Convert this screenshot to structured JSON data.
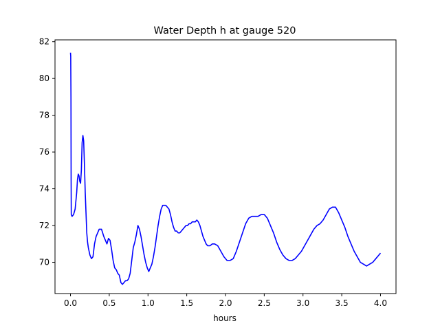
{
  "chart_data": {
    "type": "line",
    "title": "Water Depth h at gauge 520",
    "xlabel": "hours",
    "ylabel": "",
    "xlim": [
      -0.2,
      4.2
    ],
    "ylim": [
      68.3,
      82.1
    ],
    "xticks": [
      {
        "value": 0.0,
        "label": "0.0"
      },
      {
        "value": 0.5,
        "label": "0.5"
      },
      {
        "value": 1.0,
        "label": "1.0"
      },
      {
        "value": 1.5,
        "label": "1.5"
      },
      {
        "value": 2.0,
        "label": "2.0"
      },
      {
        "value": 2.5,
        "label": "2.5"
      },
      {
        "value": 3.0,
        "label": "3.0"
      },
      {
        "value": 3.5,
        "label": "3.5"
      },
      {
        "value": 4.0,
        "label": "4.0"
      }
    ],
    "yticks": [
      {
        "value": 70,
        "label": "70"
      },
      {
        "value": 72,
        "label": "72"
      },
      {
        "value": 74,
        "label": "74"
      },
      {
        "value": 76,
        "label": "76"
      },
      {
        "value": 78,
        "label": "78"
      },
      {
        "value": 80,
        "label": "80"
      },
      {
        "value": 82,
        "label": "82"
      }
    ],
    "grid": false,
    "series": [
      {
        "color": "#0000ff",
        "x": [
          0.0,
          0.003,
          0.006,
          0.008,
          0.01,
          0.02,
          0.04,
          0.06,
          0.08,
          0.09,
          0.1,
          0.11,
          0.12,
          0.13,
          0.14,
          0.15,
          0.16,
          0.17,
          0.18,
          0.19,
          0.2,
          0.21,
          0.22,
          0.23,
          0.25,
          0.27,
          0.29,
          0.31,
          0.33,
          0.35,
          0.37,
          0.4,
          0.43,
          0.45,
          0.47,
          0.49,
          0.51,
          0.53,
          0.55,
          0.57,
          0.59,
          0.61,
          0.63,
          0.65,
          0.67,
          0.69,
          0.71,
          0.73,
          0.75,
          0.77,
          0.79,
          0.81,
          0.83,
          0.85,
          0.87,
          0.89,
          0.91,
          0.93,
          0.95,
          0.97,
          0.99,
          1.01,
          1.03,
          1.05,
          1.07,
          1.09,
          1.11,
          1.13,
          1.15,
          1.17,
          1.19,
          1.21,
          1.23,
          1.25,
          1.27,
          1.29,
          1.31,
          1.33,
          1.35,
          1.37,
          1.39,
          1.41,
          1.43,
          1.45,
          1.47,
          1.49,
          1.51,
          1.53,
          1.55,
          1.57,
          1.59,
          1.61,
          1.63,
          1.65,
          1.67,
          1.69,
          1.71,
          1.73,
          1.75,
          1.77,
          1.8,
          1.83,
          1.86,
          1.9,
          1.94,
          1.98,
          2.02,
          2.06,
          2.1,
          2.14,
          2.18,
          2.22,
          2.26,
          2.3,
          2.34,
          2.38,
          2.42,
          2.46,
          2.5,
          2.54,
          2.58,
          2.62,
          2.66,
          2.7,
          2.74,
          2.78,
          2.82,
          2.86,
          2.9,
          2.94,
          2.98,
          3.02,
          3.06,
          3.1,
          3.14,
          3.18,
          3.22,
          3.26,
          3.3,
          3.34,
          3.38,
          3.42,
          3.46,
          3.5,
          3.54,
          3.58,
          3.62,
          3.66,
          3.7,
          3.74,
          3.78,
          3.82,
          3.86,
          3.9,
          3.94,
          3.98,
          4.0
        ],
        "y": [
          81.4,
          81.2,
          79.0,
          74.5,
          72.6,
          72.5,
          72.6,
          72.9,
          73.8,
          74.5,
          74.8,
          74.7,
          74.4,
          74.3,
          75.0,
          76.5,
          76.9,
          76.6,
          75.3,
          73.8,
          72.7,
          71.6,
          71.1,
          70.8,
          70.4,
          70.2,
          70.3,
          71.0,
          71.4,
          71.6,
          71.8,
          71.8,
          71.4,
          71.2,
          71.0,
          71.3,
          71.2,
          70.7,
          70.1,
          69.7,
          69.6,
          69.4,
          69.3,
          68.9,
          68.8,
          68.9,
          69.0,
          69.0,
          69.1,
          69.4,
          70.1,
          70.8,
          71.1,
          71.5,
          72.0,
          71.8,
          71.4,
          70.9,
          70.4,
          70.0,
          69.7,
          69.5,
          69.7,
          69.9,
          70.3,
          70.8,
          71.4,
          72.0,
          72.5,
          72.9,
          73.1,
          73.1,
          73.1,
          73.0,
          72.9,
          72.6,
          72.2,
          71.9,
          71.7,
          71.7,
          71.6,
          71.6,
          71.7,
          71.8,
          71.9,
          72.0,
          72.0,
          72.1,
          72.1,
          72.2,
          72.2,
          72.2,
          72.3,
          72.2,
          72.0,
          71.7,
          71.4,
          71.2,
          71.0,
          70.9,
          70.9,
          71.0,
          71.0,
          70.9,
          70.6,
          70.3,
          70.1,
          70.1,
          70.2,
          70.6,
          71.1,
          71.6,
          72.1,
          72.4,
          72.5,
          72.5,
          72.5,
          72.6,
          72.6,
          72.4,
          72.0,
          71.6,
          71.1,
          70.7,
          70.4,
          70.2,
          70.1,
          70.1,
          70.2,
          70.4,
          70.6,
          70.9,
          71.2,
          71.5,
          71.8,
          72.0,
          72.1,
          72.3,
          72.6,
          72.9,
          73.0,
          73.0,
          72.7,
          72.3,
          71.9,
          71.4,
          71.0,
          70.6,
          70.3,
          70.0,
          69.9,
          69.8,
          69.9,
          70.0,
          70.2,
          70.4,
          70.5
        ]
      }
    ]
  }
}
